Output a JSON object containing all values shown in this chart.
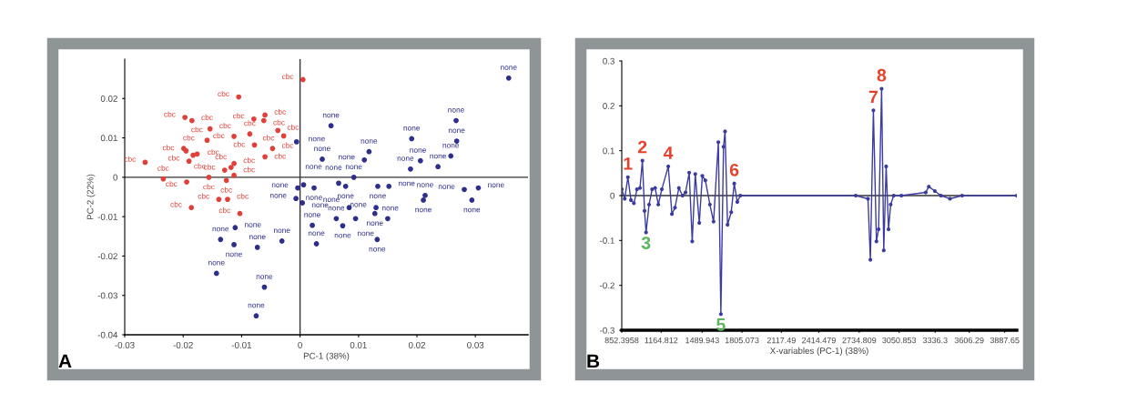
{
  "chart_data": [
    {
      "type": "scatter",
      "xlabel": "PC-1 (38%)",
      "ylabel": "PC-2 (22%)",
      "xlim": [
        -0.03,
        0.039
      ],
      "ylim": [
        -0.04,
        0.03
      ],
      "xticks": [
        -0.03,
        -0.02,
        -0.01,
        0,
        0.01,
        0.02,
        0.03
      ],
      "yticks": [
        -0.04,
        -0.03,
        -0.02,
        -0.01,
        0,
        0.01,
        0.02
      ],
      "grid": false,
      "legend": false,
      "marker": "circle",
      "ref_lines": [
        {
          "axis": "x",
          "value": 0,
          "color": "#333333"
        },
        {
          "axis": "y",
          "value": 0,
          "color": "#333333"
        }
      ],
      "annotations": [
        "A"
      ],
      "series": [
        {
          "color": "#e0403a",
          "x": [
            0.0005,
            -0.0105,
            -0.0197,
            -0.0185,
            -0.0154,
            -0.0113,
            -0.0079,
            -0.0062,
            -0.006,
            -0.0086,
            -0.0038,
            -0.0028,
            -0.0159,
            -0.0199,
            -0.0195,
            -0.0183,
            -0.0176,
            -0.019,
            -0.0265,
            -0.0234,
            -0.0194,
            -0.0156,
            -0.0078,
            -0.0047,
            -0.006,
            -0.0113,
            -0.0118,
            -0.0129,
            -0.0113,
            -0.0126,
            -0.0139,
            -0.0124,
            -0.0186,
            -0.0103
          ],
          "values": [
            0.0248,
            0.0204,
            0.0152,
            0.0144,
            0.0123,
            0.0104,
            0.0148,
            0.0144,
            0.0158,
            0.011,
            0.0119,
            0.0105,
            0.0094,
            0.0073,
            0.0067,
            0.0056,
            0.0059,
            0.0041,
            0.0038,
            -0.0004,
            -0.0012,
            0,
            0.0082,
            0.0073,
            0.0052,
            0.0035,
            0.0025,
            0.0018,
            0.0005,
            -0.0008,
            -0.0056,
            -0.0056,
            -0.0077,
            -0.0092
          ],
          "value_labels": [
            "cbc",
            "cbc",
            "cbc",
            "cbc",
            "cbc",
            "cbc",
            "cbc",
            "cbc",
            "cbc",
            "cbc",
            "cbc",
            "cbc",
            "cbc",
            "cbc",
            "cbc",
            "cbc",
            "cbc",
            "cbc",
            "cbc",
            "cbc",
            "cbc",
            "cbc",
            "cbc",
            "cbc",
            "cbc",
            "cbc",
            "cbc",
            "cbc",
            "cbc",
            "cbc",
            "cbc",
            "cbc",
            "cbc",
            "cbc"
          ]
        },
        {
          "color": "#2e2e8c",
          "x": [
            0.0357,
            0.0053,
            0.0267,
            0.0191,
            0.0268,
            0.0258,
            0.0236,
            0.0206,
            0.0189,
            0.0118,
            0.011,
            0.0038,
            -0.0006,
            0.0092,
            0.0066,
            0.0078,
            0.0133,
            0.0152,
            0.0024,
            0.0006,
            -0.0004,
            -0.0007,
            0.0004,
            0.0214,
            0.0211,
            0.0281,
            0.0305,
            0.0294,
            0.013,
            0.0128,
            0.015,
            0.0084,
            0.0095,
            0.0062,
            0.0073,
            0.0021,
            0.0028,
            0.0132,
            -0.0111,
            -0.0136,
            -0.0113,
            -0.0073,
            -0.0031,
            -0.0143,
            -0.0061,
            -0.0075
          ],
          "values": [
            0.0252,
            0.0131,
            0.0144,
            0.0098,
            0.0092,
            0.0054,
            0.0027,
            0.0042,
            0.0021,
            0.0065,
            0.0044,
            0.0046,
            0.009,
            0,
            -0.0015,
            -0.0023,
            -0.0023,
            -0.0023,
            -0.0027,
            -0.0019,
            -0.0027,
            -0.0054,
            -0.0065,
            -0.0046,
            -0.0058,
            -0.0031,
            -0.0027,
            -0.0058,
            -0.0077,
            -0.0092,
            -0.0105,
            -0.0077,
            -0.0105,
            -0.0105,
            -0.0123,
            -0.0122,
            -0.0169,
            -0.0158,
            -0.0128,
            -0.0158,
            -0.0171,
            -0.0178,
            -0.0162,
            -0.0244,
            -0.0279,
            -0.0352
          ],
          "value_labels": [
            "none",
            "none",
            "none",
            "none",
            "none",
            "none",
            "none",
            "none",
            "none",
            "none",
            "none",
            "none",
            "none",
            "none",
            "none",
            "none",
            "none",
            "none",
            "none",
            "none",
            "none",
            "none",
            "none",
            "none",
            "none",
            "none",
            "none",
            "none",
            "none",
            "none",
            "none",
            "none",
            "none",
            "none",
            "none",
            "none",
            "none",
            "none",
            "none",
            "none",
            "none",
            "none",
            "none",
            "none",
            "none",
            "none"
          ]
        }
      ]
    },
    {
      "type": "line",
      "xlabel": "X-variables (PC-1) (38%)",
      "xlim": [
        852.3958,
        3984
      ],
      "ylim": [
        -0.3,
        0.3
      ],
      "xticks": [
        {
          "value": 852.3958,
          "label": "852.3958"
        },
        {
          "value": 1164.812,
          "label": "1164.812"
        },
        {
          "value": 1489.943,
          "label": "1489.943"
        },
        {
          "value": 1805.073,
          "label": "1805.073"
        },
        {
          "value": 2117.49,
          "label": "2117.49"
        },
        {
          "value": 2414.479,
          "label": "2414.479"
        },
        {
          "value": 2734.809,
          "label": "2734.809"
        },
        {
          "value": 3050.853,
          "label": "3050.853"
        },
        {
          "value": 3336.3,
          "label": "3336.3"
        },
        {
          "value": 3606.29,
          "label": "3606.29"
        },
        {
          "value": 3887.65,
          "label": "3887.65"
        }
      ],
      "yticks": [
        -0.3,
        -0.2,
        -0.1,
        0,
        0.1,
        0.2,
        0.3
      ],
      "grid": false,
      "legend": false,
      "marker": "circle",
      "line_style": "solid",
      "ref_lines": [
        {
          "axis": "y",
          "value": 0,
          "color": "#333333"
        }
      ],
      "annotations": [
        "B",
        {
          "text": "1",
          "x": 901,
          "y": 0.041
        },
        {
          "text": "2",
          "x": 1016,
          "y": 0.078
        },
        {
          "text": "3",
          "x": 1045,
          "y": -0.082
        },
        {
          "text": "4",
          "x": 1221,
          "y": 0.065
        },
        {
          "text": "5",
          "x": 1638,
          "y": -0.264
        },
        {
          "text": "6",
          "x": 1744,
          "y": 0.027
        },
        {
          "text": "7",
          "x": 2847,
          "y": 0.19
        },
        {
          "text": "8",
          "x": 2912,
          "y": 0.238
        }
      ],
      "series": [
        {
          "color": "#3b3ba0",
          "x": [
            853,
            876,
            901,
            925,
            949,
            973,
            997,
            1016,
            1033,
            1045,
            1069,
            1093,
            1117,
            1142,
            1170,
            1221,
            1250,
            1274,
            1305,
            1334,
            1358,
            1387,
            1411,
            1435,
            1467,
            1491,
            1515,
            1551,
            1580,
            1618,
            1638,
            1659,
            1671,
            1691,
            1720,
            1744,
            1768,
            1792,
            2707,
            2804,
            2823,
            2847,
            2871,
            2888,
            2912,
            2929,
            2948,
            2967,
            2984,
            3008,
            3069,
            3262,
            3286,
            3334,
            3382,
            3454,
            3550,
            3984
          ],
          "values": [
            0.014,
            -0.007,
            0.041,
            -0.01,
            -0.017,
            0.014,
            0.017,
            0.078,
            -0.034,
            -0.082,
            -0.02,
            0.014,
            0.017,
            -0.02,
            0.014,
            0.065,
            -0.041,
            -0.027,
            0.017,
            0,
            0.007,
            0.051,
            -0.102,
            0.048,
            -0.061,
            0.044,
            0.034,
            -0.02,
            -0.058,
            0.119,
            -0.264,
            0.109,
            0.143,
            -0.065,
            -0.037,
            0.027,
            -0.014,
            0,
            0,
            -0.007,
            -0.143,
            0.19,
            -0.102,
            -0.075,
            0.238,
            -0.122,
            0.065,
            -0.075,
            -0.02,
            0,
            0,
            0.007,
            0.02,
            0.01,
            0,
            -0.007,
            0,
            0
          ]
        }
      ]
    }
  ]
}
